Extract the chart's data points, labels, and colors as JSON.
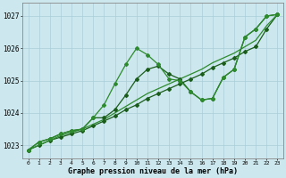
{
  "xlabel": "Graphe pression niveau de la mer (hPa)",
  "ylim": [
    1022.6,
    1027.4
  ],
  "xlim": [
    -0.5,
    23.5
  ],
  "yticks": [
    1023,
    1024,
    1025,
    1026,
    1027
  ],
  "xticks": [
    0,
    1,
    2,
    3,
    4,
    5,
    6,
    7,
    8,
    9,
    10,
    11,
    12,
    13,
    14,
    15,
    16,
    17,
    18,
    19,
    20,
    21,
    22,
    23
  ],
  "background_color": "#cce8ee",
  "grid_color": "#aacdd6",
  "dark": "#1a5c1a",
  "mid": "#2d8b2d",
  "line_wavy1": [
    1022.85,
    1023.1,
    1023.2,
    1023.35,
    1023.45,
    1023.5,
    1023.85,
    1024.25,
    1024.9,
    1025.5,
    1026.0,
    1025.8,
    1025.5,
    1025.05,
    1025.0,
    1024.65,
    1024.4,
    1024.45,
    1025.1,
    1025.35,
    1026.35,
    1026.6,
    1027.0,
    1027.05
  ],
  "line_wavy2": [
    1022.85,
    1023.1,
    1023.2,
    1023.35,
    1023.45,
    1023.5,
    1023.85,
    1023.85,
    1024.1,
    1024.55,
    1025.05,
    1025.35,
    1025.45,
    1025.2,
    1025.05,
    1024.65,
    1024.4,
    1024.45,
    1025.1,
    1025.35,
    1026.35,
    1026.6,
    1027.0,
    1027.05
  ],
  "line_straight1": [
    1022.85,
    1023.0,
    1023.15,
    1023.25,
    1023.35,
    1023.45,
    1023.6,
    1023.75,
    1023.9,
    1024.1,
    1024.25,
    1024.45,
    1024.6,
    1024.75,
    1024.9,
    1025.05,
    1025.2,
    1025.4,
    1025.55,
    1025.7,
    1025.9,
    1026.05,
    1026.6,
    1027.05
  ],
  "line_straight2": [
    1022.85,
    1023.0,
    1023.15,
    1023.3,
    1023.4,
    1023.5,
    1023.65,
    1023.8,
    1024.0,
    1024.2,
    1024.4,
    1024.6,
    1024.75,
    1024.9,
    1025.05,
    1025.2,
    1025.35,
    1025.55,
    1025.7,
    1025.85,
    1026.05,
    1026.25,
    1026.7,
    1027.05
  ]
}
